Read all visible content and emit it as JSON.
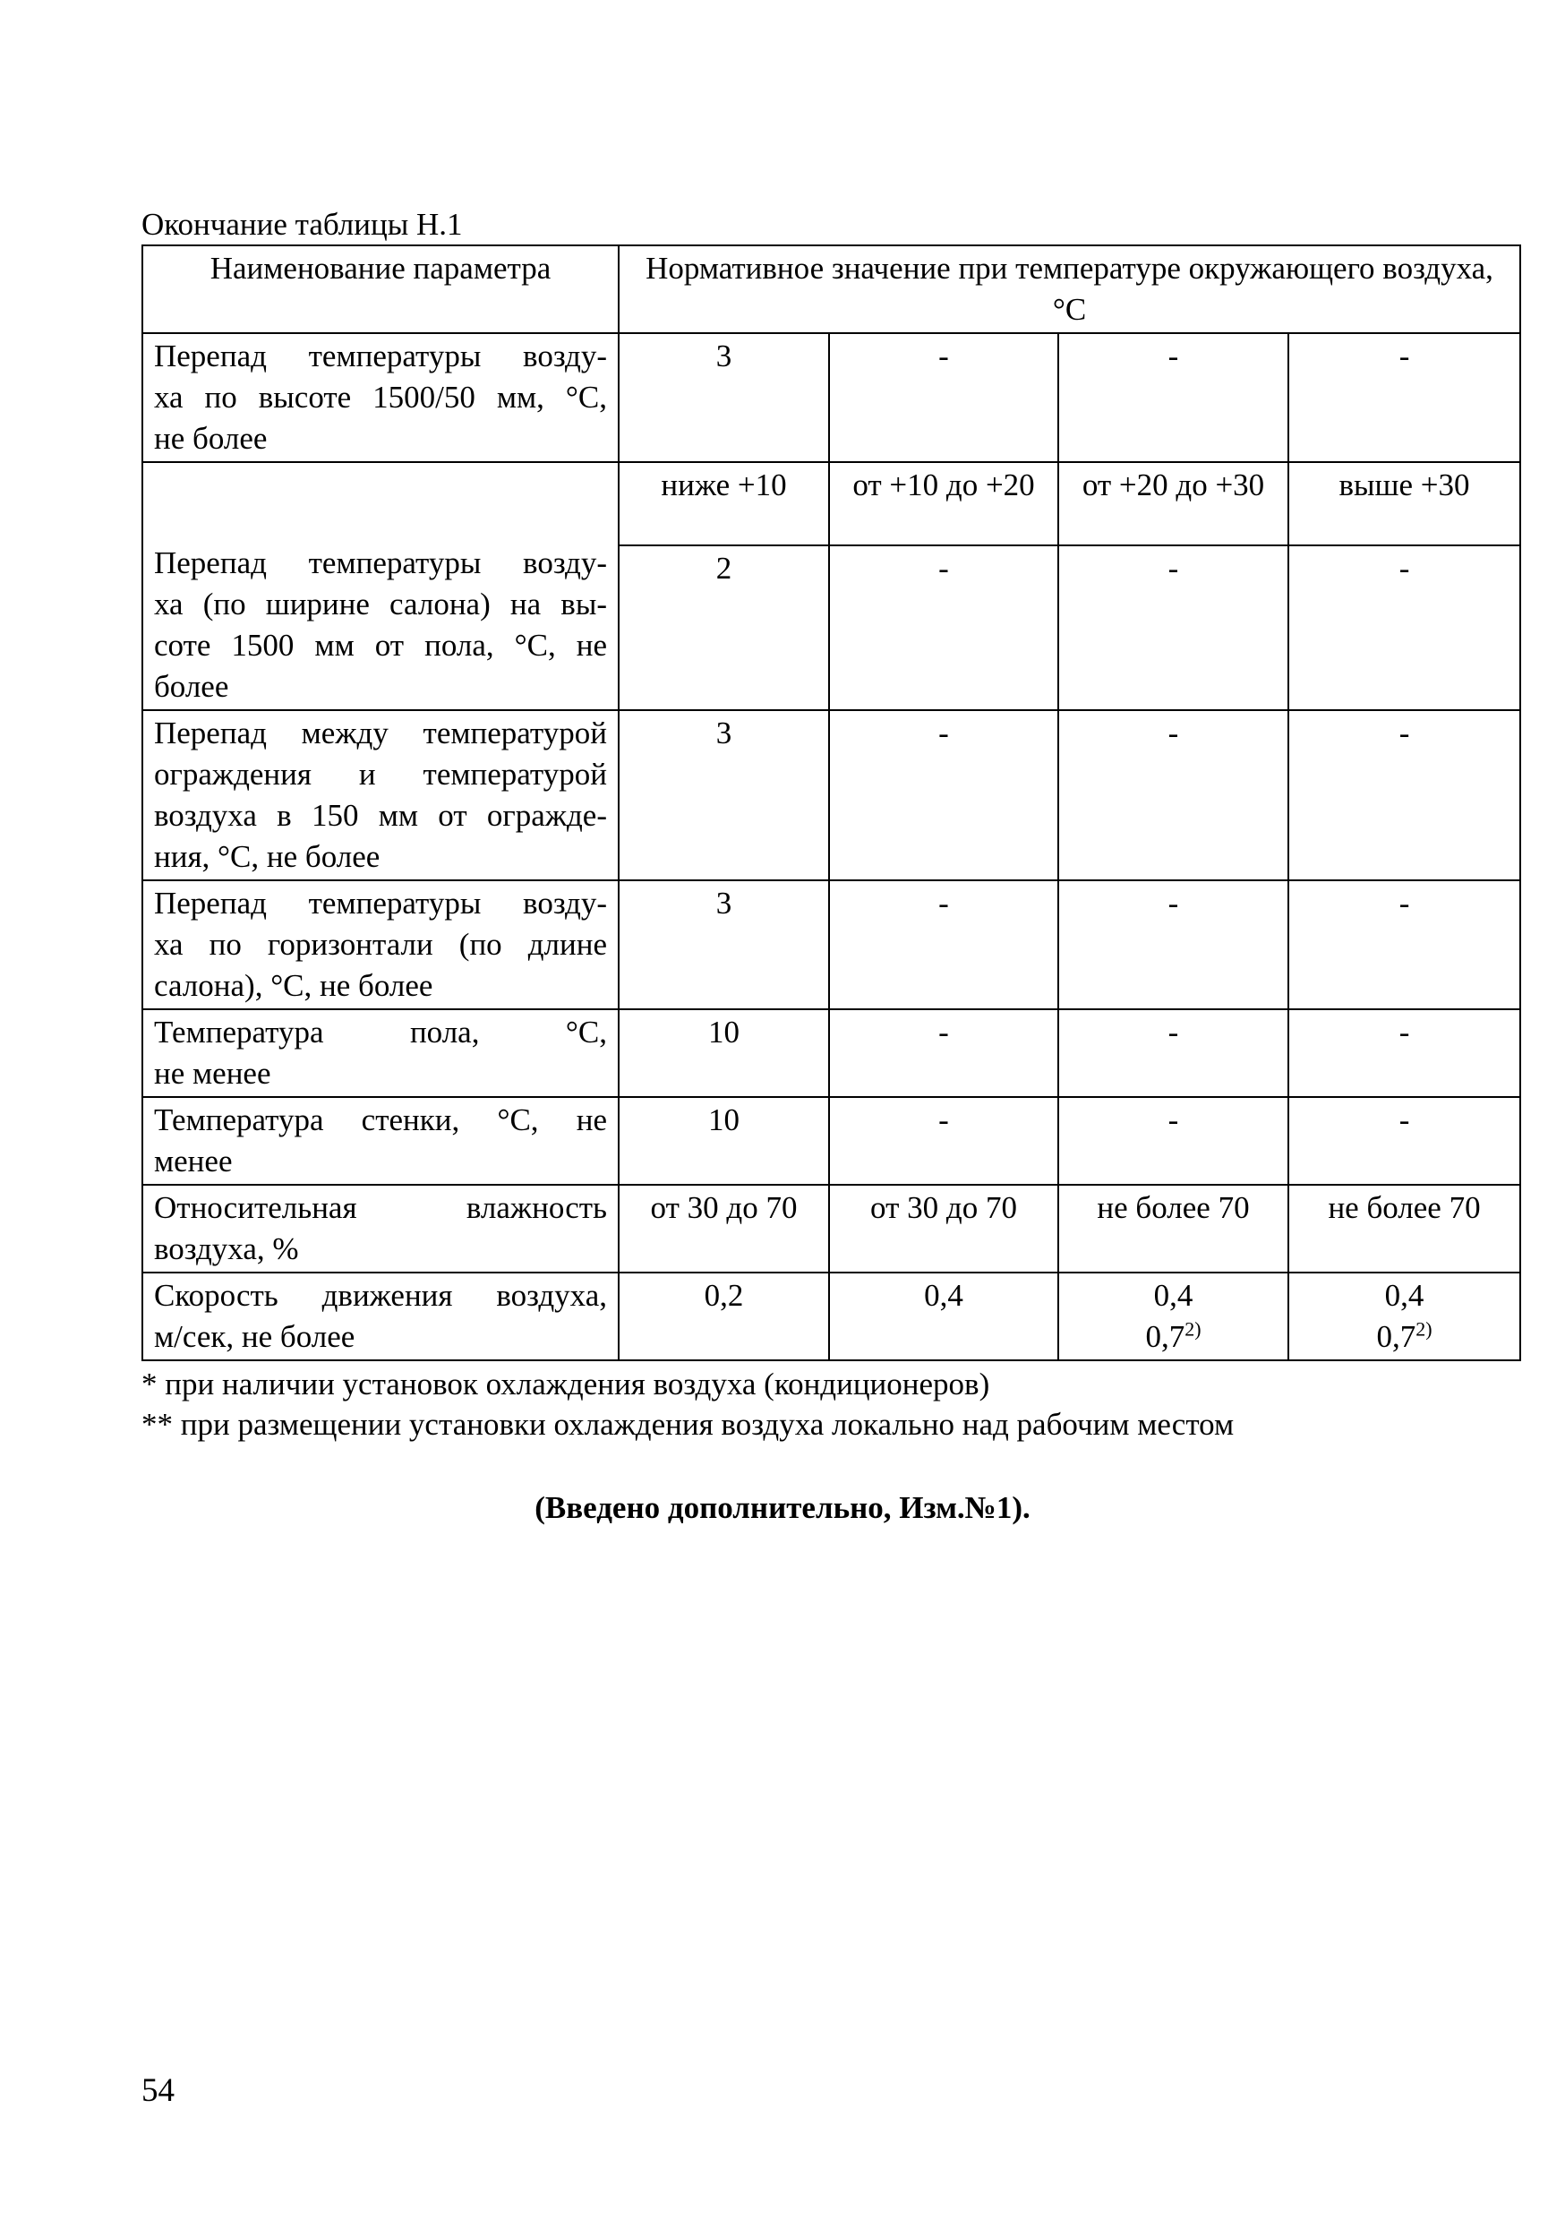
{
  "caption": "Окончание таблицы Н.1",
  "header": {
    "param": "Наименование параметра",
    "value": "Нормативное значение при температуре окружающего воздуха, °С"
  },
  "temp_ranges": [
    "ниже +10",
    "от +10 до +20",
    "от +20 до +30",
    "выше +30"
  ],
  "rows": [
    {
      "name_lines": [
        "Перепад температуры возду-",
        "ха по высоте 1500/50 мм, °С,",
        "не более"
      ],
      "values": [
        "3",
        "-",
        "-",
        "-"
      ]
    },
    {
      "name_lines": [
        "Перепад температуры возду-",
        "ха (по ширине салона) на вы-",
        "соте 1500 мм от пола, °С, не",
        "более"
      ],
      "values": [
        "2",
        "-",
        "-",
        "-"
      ]
    },
    {
      "name_lines": [
        "Перепад между температурой",
        "ограждения и температурой",
        "воздуха в 150 мм от огражде-",
        "ния, °С, не более"
      ],
      "values": [
        "3",
        "-",
        "-",
        "-"
      ]
    },
    {
      "name_lines": [
        "Перепад температуры возду-",
        "ха по горизонтали (по длине",
        "салона), °С, не более"
      ],
      "values": [
        "3",
        "-",
        "-",
        "-"
      ]
    },
    {
      "name_lines": [
        "Температура пола, °С,",
        "не менее"
      ],
      "values": [
        "10",
        "-",
        "-",
        "-"
      ]
    },
    {
      "name_lines": [
        "Температура стенки, °С, не",
        "менее"
      ],
      "values": [
        "10",
        "-",
        "-",
        "-"
      ]
    },
    {
      "name_lines": [
        "Относительная влажность",
        "воздуха, %"
      ],
      "values": [
        "от 30 до 70",
        "от 30 до 70",
        "не более 70",
        "не более 70"
      ]
    },
    {
      "name_lines": [
        "Скорость движения воздуха,",
        "м/сек, не более"
      ],
      "values": [
        "0,2",
        "0,4",
        "0,4",
        "0,4"
      ],
      "extra": [
        "",
        "",
        "0,7",
        "0,7"
      ],
      "extra_sup": "2)"
    }
  ],
  "footnotes": [
    "* при наличии установок охлаждения воздуха (кондиционеров)",
    "** при размещении установки охлаждения воздуха локально над рабочим местом"
  ],
  "note": "(Введено дополнительно, Изм.№1).",
  "page_number": "54"
}
